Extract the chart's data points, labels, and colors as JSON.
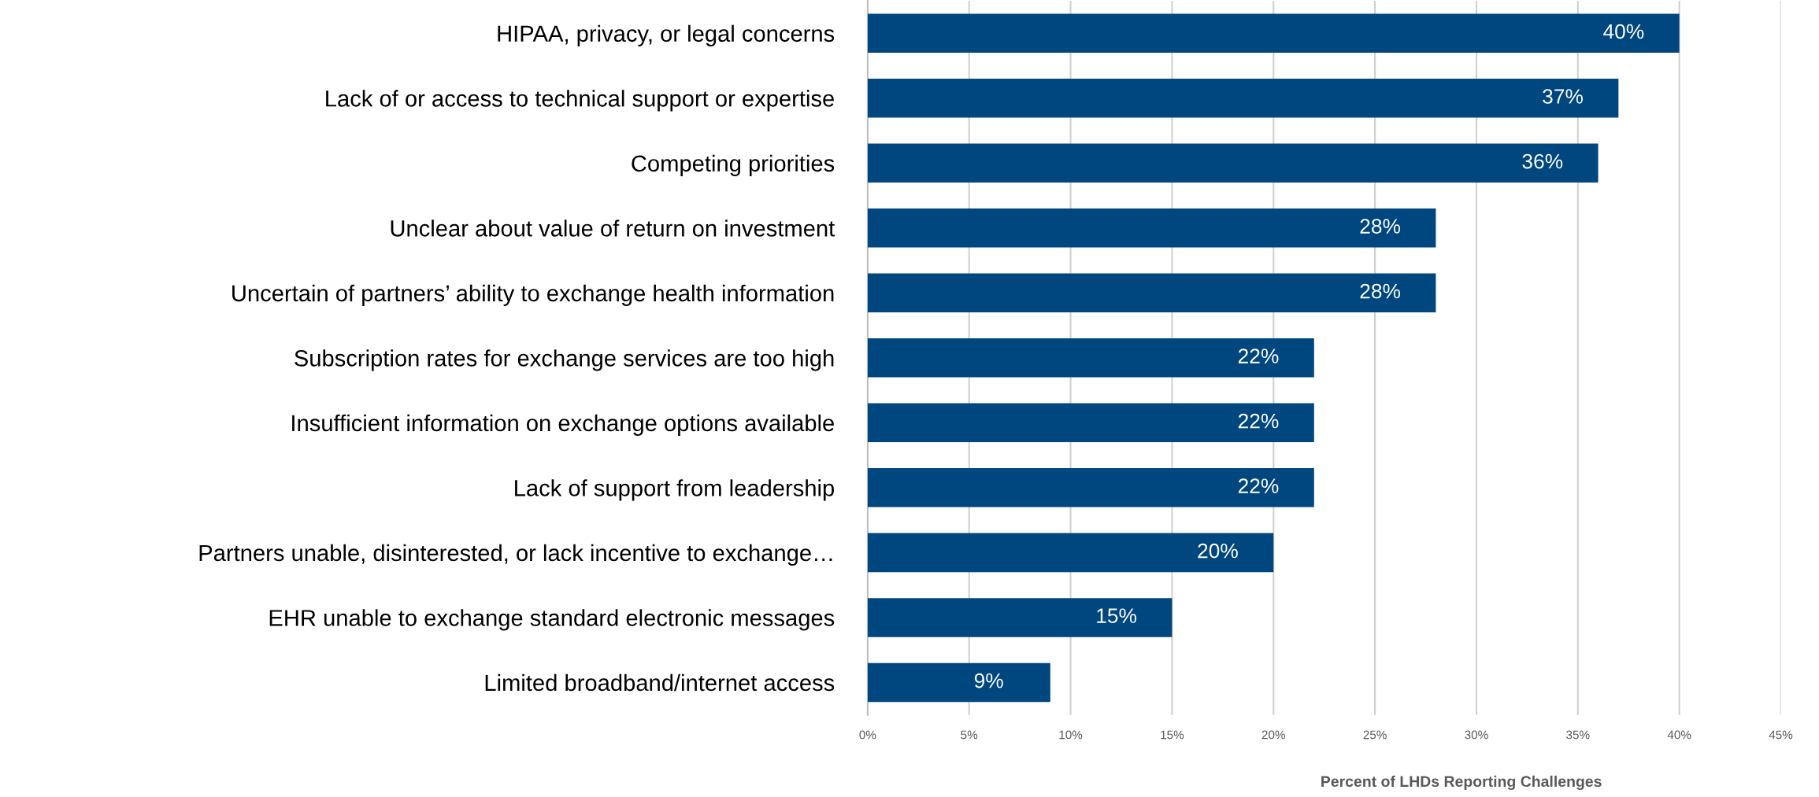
{
  "chart_data": {
    "type": "bar",
    "orientation": "horizontal",
    "xlabel": "Percent of LHDs Reporting Challenges",
    "categories": [
      "HIPAA, privacy, or legal concerns",
      "Lack of or access to technical support or expertise",
      "Competing priorities",
      "Unclear about value of return on investment",
      "Uncertain of partners’ ability to exchange health information",
      "Subscription rates for exchange services are too high",
      "Insufficient information on exchange options available",
      "Lack of support from leadership",
      "Partners unable, disinterested, or lack incentive to exchange…",
      "EHR unable to exchange standard electronic messages",
      "Limited broadband/internet access"
    ],
    "values": [
      40,
      37,
      36,
      28,
      28,
      22,
      22,
      22,
      20,
      15,
      9
    ],
    "value_labels": [
      "40%",
      "37%",
      "36%",
      "28%",
      "28%",
      "22%",
      "22%",
      "22%",
      "20%",
      "15%",
      "9%"
    ],
    "color": "#00467f",
    "xlim": [
      0,
      45
    ],
    "xticks": [
      {
        "value": 0,
        "label": "0%"
      },
      {
        "value": 5,
        "label": "5%"
      },
      {
        "value": 10,
        "label": "10%"
      },
      {
        "value": 15,
        "label": "15%"
      },
      {
        "value": 20,
        "label": "20%"
      },
      {
        "value": 25,
        "label": "25%"
      },
      {
        "value": 30,
        "label": "30%"
      },
      {
        "value": 35,
        "label": "35%"
      },
      {
        "value": 40,
        "label": "40%"
      },
      {
        "value": 45,
        "label": "45%"
      }
    ],
    "grid": "x",
    "legend": false
  }
}
